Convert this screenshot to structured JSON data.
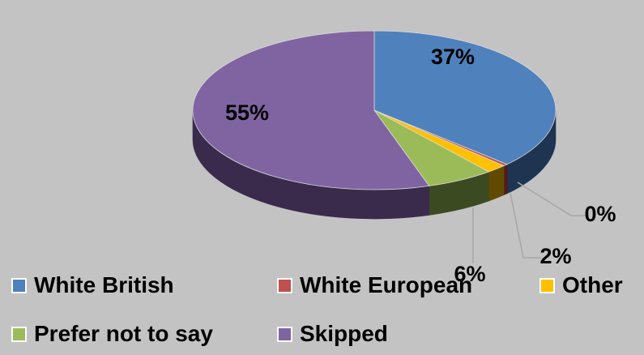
{
  "chart_data": {
    "type": "pie",
    "style": "3d",
    "title": "",
    "series": [
      {
        "name": "White British",
        "label": "37%",
        "value": 37,
        "color": "#4f81bd",
        "side_color": "#1f3450"
      },
      {
        "name": "White European",
        "label": "0%",
        "value": 0.4,
        "color": "#c0504d",
        "side_color": "#4f1b1a"
      },
      {
        "name": "Other",
        "label": "2%",
        "value": 1.8,
        "color": "#ffc000",
        "side_color": "#614a00"
      },
      {
        "name": "Prefer not to say",
        "label": "6%",
        "value": 6,
        "color": "#9bbb59",
        "side_color": "#3c4a22"
      },
      {
        "name": "Skipped",
        "label": "55%",
        "value": 55,
        "color": "#8064a2",
        "side_color": "#3a2b4d"
      }
    ],
    "legend_position": "bottom"
  }
}
